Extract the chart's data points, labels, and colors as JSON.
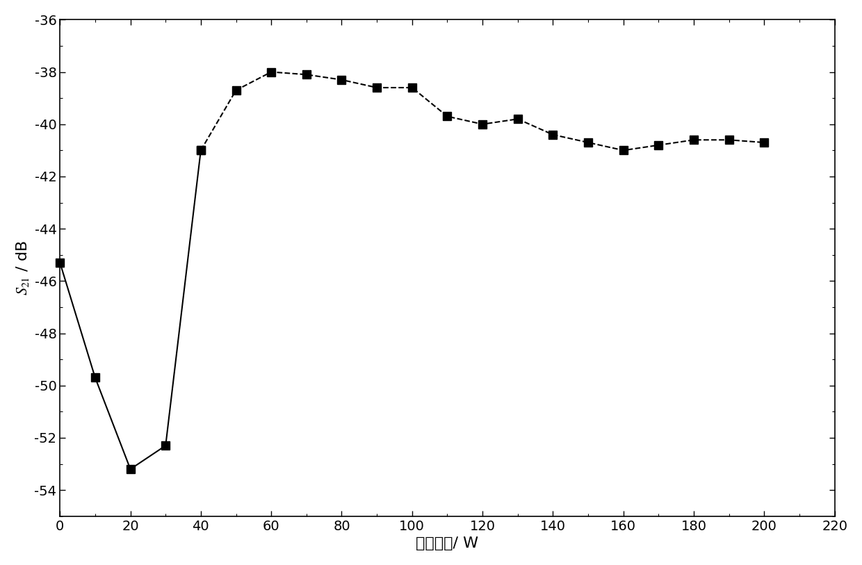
{
  "x": [
    0,
    10,
    20,
    30,
    40,
    50,
    60,
    70,
    80,
    90,
    100,
    110,
    120,
    130,
    140,
    150,
    160,
    170,
    180,
    190,
    200
  ],
  "y": [
    -45.3,
    -49.7,
    -53.2,
    -52.3,
    -41.0,
    -38.7,
    -38.0,
    -38.1,
    -38.3,
    -38.6,
    -38.6,
    -39.7,
    -40.0,
    -39.8,
    -40.4,
    -40.7,
    -41.0,
    -40.8,
    -40.6,
    -40.6,
    -40.7
  ],
  "solid_end_idx": 4,
  "xlabel": "放电功率/ W",
  "xlim": [
    0,
    220
  ],
  "ylim": [
    -55,
    -36
  ],
  "xticks": [
    0,
    20,
    40,
    60,
    80,
    100,
    120,
    140,
    160,
    180,
    200,
    220
  ],
  "yticks": [
    -36,
    -38,
    -40,
    -42,
    -44,
    -46,
    -48,
    -50,
    -52,
    -54
  ],
  "marker": "s",
  "markersize": 8,
  "linewidth": 1.5,
  "color": "#000000",
  "background_color": "#ffffff",
  "axis_fontsize": 16,
  "tick_fontsize": 14
}
